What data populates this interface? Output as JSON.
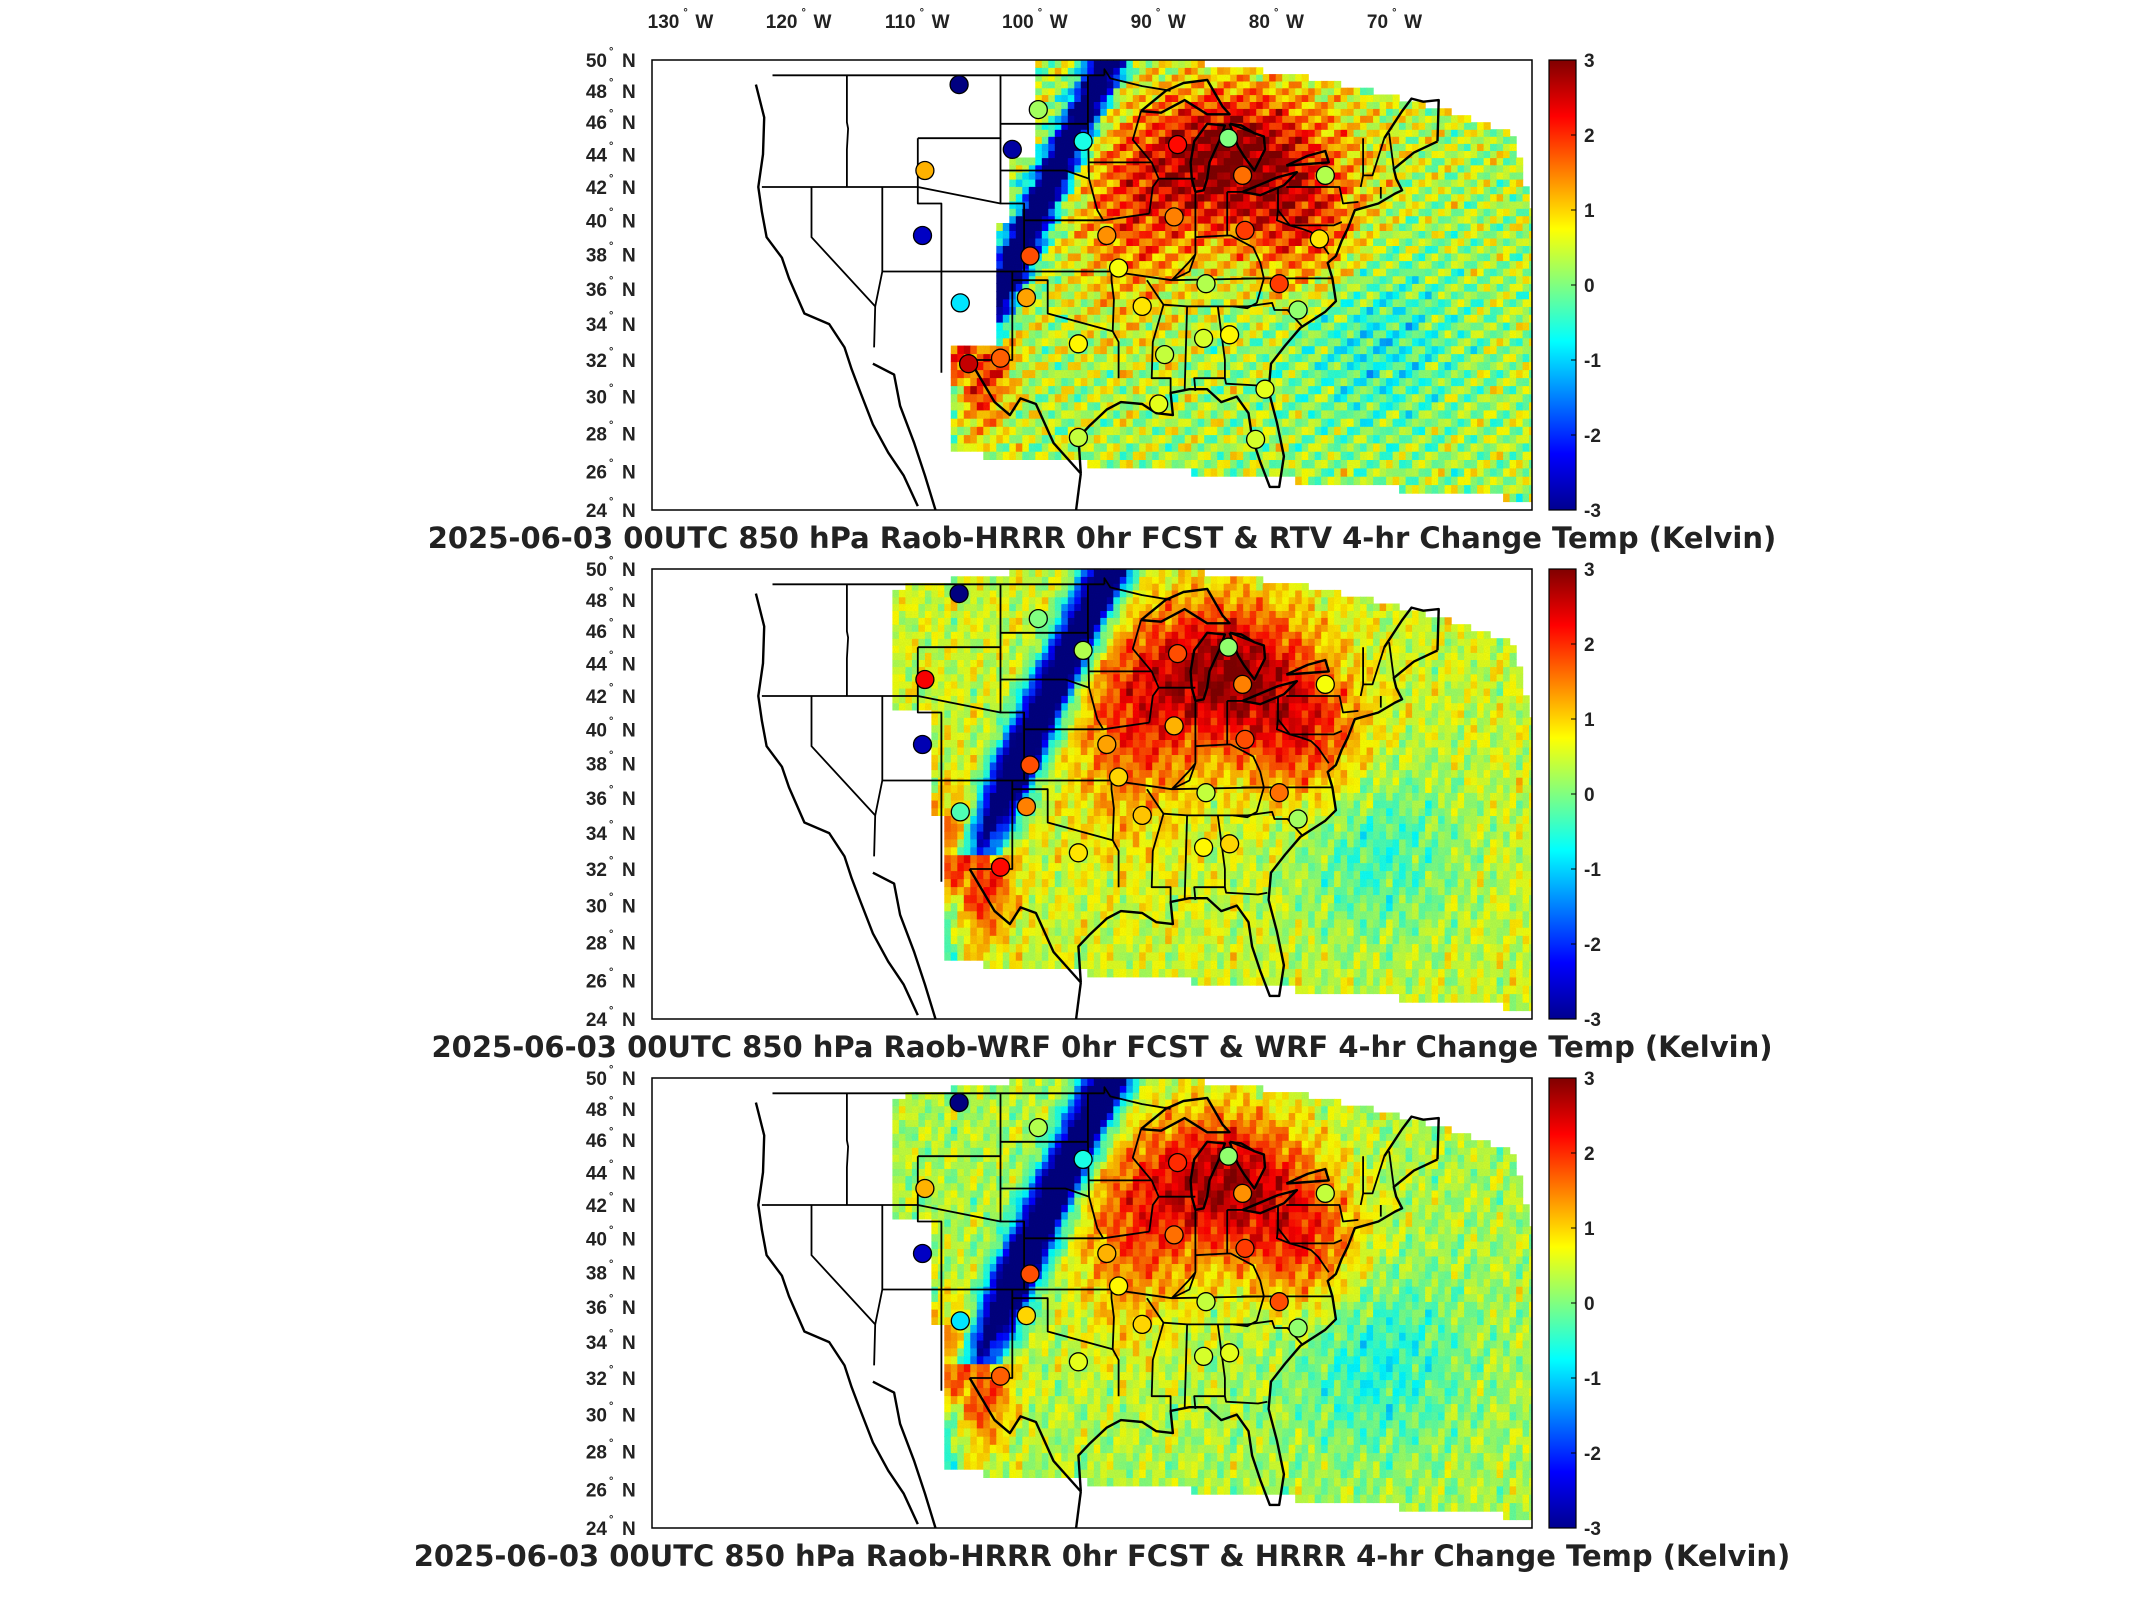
{
  "lon_labels": [
    "130",
    "120",
    "110",
    "100",
    "90",
    "80",
    "70"
  ],
  "lon_suffix": "W",
  "lat_labels": [
    "50",
    "48",
    "46",
    "44",
    "42",
    "40",
    "38",
    "36",
    "34",
    "32",
    "30",
    "28",
    "26",
    "24"
  ],
  "lat_suffix": "N",
  "colorbar": {
    "ticks": [
      "3",
      "2",
      "1",
      "0",
      "-1",
      "-2",
      "-3"
    ],
    "min": -3,
    "max": 3,
    "colormap": "jet"
  },
  "panels": [
    {
      "title": "2025-06-03 00UTC 850 hPa Raob-HRRR 0hr FCST & RTV 4-hr Change Temp (Kelvin)",
      "field_variant": "rtv",
      "stations": [
        {
          "lon": -107.5,
          "lat": 48.4,
          "value": -3.0
        },
        {
          "lon": -100.8,
          "lat": 46.8,
          "value": 0.2
        },
        {
          "lon": -103.0,
          "lat": 44.3,
          "value": -2.8
        },
        {
          "lon": -97.0,
          "lat": 44.8,
          "value": -0.6
        },
        {
          "lon": -110.4,
          "lat": 43.0,
          "value": 1.2
        },
        {
          "lon": -110.6,
          "lat": 39.1,
          "value": -2.6
        },
        {
          "lon": -101.5,
          "lat": 37.9,
          "value": 1.8
        },
        {
          "lon": -107.4,
          "lat": 35.2,
          "value": -0.9
        },
        {
          "lon": -101.8,
          "lat": 35.5,
          "value": 1.3
        },
        {
          "lon": -104.0,
          "lat": 32.1,
          "value": 1.7
        },
        {
          "lon": -106.7,
          "lat": 31.8,
          "value": 2.6
        },
        {
          "lon": -97.4,
          "lat": 32.9,
          "value": 0.8
        },
        {
          "lon": -94.0,
          "lat": 37.2,
          "value": 0.7
        },
        {
          "lon": -92.0,
          "lat": 35.0,
          "value": 0.9
        },
        {
          "lon": -95.0,
          "lat": 39.1,
          "value": 1.4
        },
        {
          "lon": -89.3,
          "lat": 40.2,
          "value": 1.5
        },
        {
          "lon": -89.0,
          "lat": 44.6,
          "value": 2.2
        },
        {
          "lon": -84.7,
          "lat": 45.0,
          "value": 0.0
        },
        {
          "lon": -83.5,
          "lat": 42.7,
          "value": 1.6
        },
        {
          "lon": -83.3,
          "lat": 39.4,
          "value": 1.9
        },
        {
          "lon": -86.6,
          "lat": 36.3,
          "value": 0.3
        },
        {
          "lon": -84.6,
          "lat": 33.4,
          "value": 0.8
        },
        {
          "lon": -86.8,
          "lat": 33.2,
          "value": 0.5
        },
        {
          "lon": -90.1,
          "lat": 32.3,
          "value": 0.4
        },
        {
          "lon": -80.4,
          "lat": 36.3,
          "value": 1.9
        },
        {
          "lon": -78.8,
          "lat": 34.8,
          "value": 0.1
        },
        {
          "lon": -81.6,
          "lat": 30.4,
          "value": 0.6
        },
        {
          "lon": -97.4,
          "lat": 27.8,
          "value": 0.4
        },
        {
          "lon": -90.6,
          "lat": 29.6,
          "value": 0.6
        },
        {
          "lon": -82.4,
          "lat": 27.7,
          "value": 0.5
        },
        {
          "lon": -76.5,
          "lat": 42.7,
          "value": 0.3
        },
        {
          "lon": -77.0,
          "lat": 38.9,
          "value": 0.9
        }
      ]
    },
    {
      "title": "2025-06-03 00UTC 850 hPa Raob-WRF 0hr FCST & WRF 4-hr Change Temp (Kelvin)",
      "field_variant": "wrf",
      "stations": [
        {
          "lon": -107.5,
          "lat": 48.4,
          "value": -3.0
        },
        {
          "lon": -100.8,
          "lat": 46.8,
          "value": 0.0
        },
        {
          "lon": -97.0,
          "lat": 44.8,
          "value": 0.3
        },
        {
          "lon": -110.4,
          "lat": 43.0,
          "value": 2.3
        },
        {
          "lon": -110.6,
          "lat": 39.1,
          "value": -2.7
        },
        {
          "lon": -101.5,
          "lat": 37.9,
          "value": 1.8
        },
        {
          "lon": -107.4,
          "lat": 35.2,
          "value": -0.3
        },
        {
          "lon": -101.8,
          "lat": 35.5,
          "value": 1.5
        },
        {
          "lon": -104.0,
          "lat": 32.1,
          "value": 2.2
        },
        {
          "lon": -97.4,
          "lat": 32.9,
          "value": 0.9
        },
        {
          "lon": -94.0,
          "lat": 37.2,
          "value": 1.0
        },
        {
          "lon": -92.0,
          "lat": 35.0,
          "value": 1.1
        },
        {
          "lon": -95.0,
          "lat": 39.1,
          "value": 1.3
        },
        {
          "lon": -89.3,
          "lat": 40.2,
          "value": 1.2
        },
        {
          "lon": -89.0,
          "lat": 44.6,
          "value": 1.8
        },
        {
          "lon": -84.7,
          "lat": 45.0,
          "value": 0.1
        },
        {
          "lon": -83.5,
          "lat": 42.7,
          "value": 1.5
        },
        {
          "lon": -83.3,
          "lat": 39.4,
          "value": 1.8
        },
        {
          "lon": -86.6,
          "lat": 36.3,
          "value": 0.4
        },
        {
          "lon": -84.6,
          "lat": 33.4,
          "value": 1.0
        },
        {
          "lon": -86.8,
          "lat": 33.2,
          "value": 0.8
        },
        {
          "lon": -80.4,
          "lat": 36.3,
          "value": 1.6
        },
        {
          "lon": -78.8,
          "lat": 34.8,
          "value": 0.2
        },
        {
          "lon": -76.5,
          "lat": 42.7,
          "value": 0.7
        }
      ]
    },
    {
      "title": "2025-06-03 00UTC 850 hPa Raob-HRRR 0hr FCST & HRRR 4-hr Change Temp (Kelvin)",
      "field_variant": "hrrr",
      "stations": [
        {
          "lon": -107.5,
          "lat": 48.4,
          "value": -3.0
        },
        {
          "lon": -100.8,
          "lat": 46.8,
          "value": 0.3
        },
        {
          "lon": -97.0,
          "lat": 44.8,
          "value": -0.6
        },
        {
          "lon": -110.4,
          "lat": 43.0,
          "value": 1.2
        },
        {
          "lon": -110.6,
          "lat": 39.1,
          "value": -2.6
        },
        {
          "lon": -101.5,
          "lat": 37.9,
          "value": 1.8
        },
        {
          "lon": -107.4,
          "lat": 35.2,
          "value": -0.9
        },
        {
          "lon": -101.8,
          "lat": 35.5,
          "value": 1.0
        },
        {
          "lon": -104.0,
          "lat": 32.1,
          "value": 1.7
        },
        {
          "lon": -97.4,
          "lat": 32.9,
          "value": 0.6
        },
        {
          "lon": -94.0,
          "lat": 37.2,
          "value": 0.8
        },
        {
          "lon": -92.0,
          "lat": 35.0,
          "value": 1.0
        },
        {
          "lon": -95.0,
          "lat": 39.1,
          "value": 1.2
        },
        {
          "lon": -89.3,
          "lat": 40.2,
          "value": 1.6
        },
        {
          "lon": -89.0,
          "lat": 44.6,
          "value": 2.0
        },
        {
          "lon": -84.7,
          "lat": 45.0,
          "value": 0.1
        },
        {
          "lon": -83.5,
          "lat": 42.7,
          "value": 1.4
        },
        {
          "lon": -83.3,
          "lat": 39.4,
          "value": 1.9
        },
        {
          "lon": -86.6,
          "lat": 36.3,
          "value": 0.4
        },
        {
          "lon": -84.6,
          "lat": 33.4,
          "value": 0.6
        },
        {
          "lon": -86.8,
          "lat": 33.2,
          "value": 0.5
        },
        {
          "lon": -80.4,
          "lat": 36.3,
          "value": 1.8
        },
        {
          "lon": -78.8,
          "lat": 34.8,
          "value": 0.1
        },
        {
          "lon": -76.5,
          "lat": 42.7,
          "value": 0.4
        }
      ]
    }
  ]
}
